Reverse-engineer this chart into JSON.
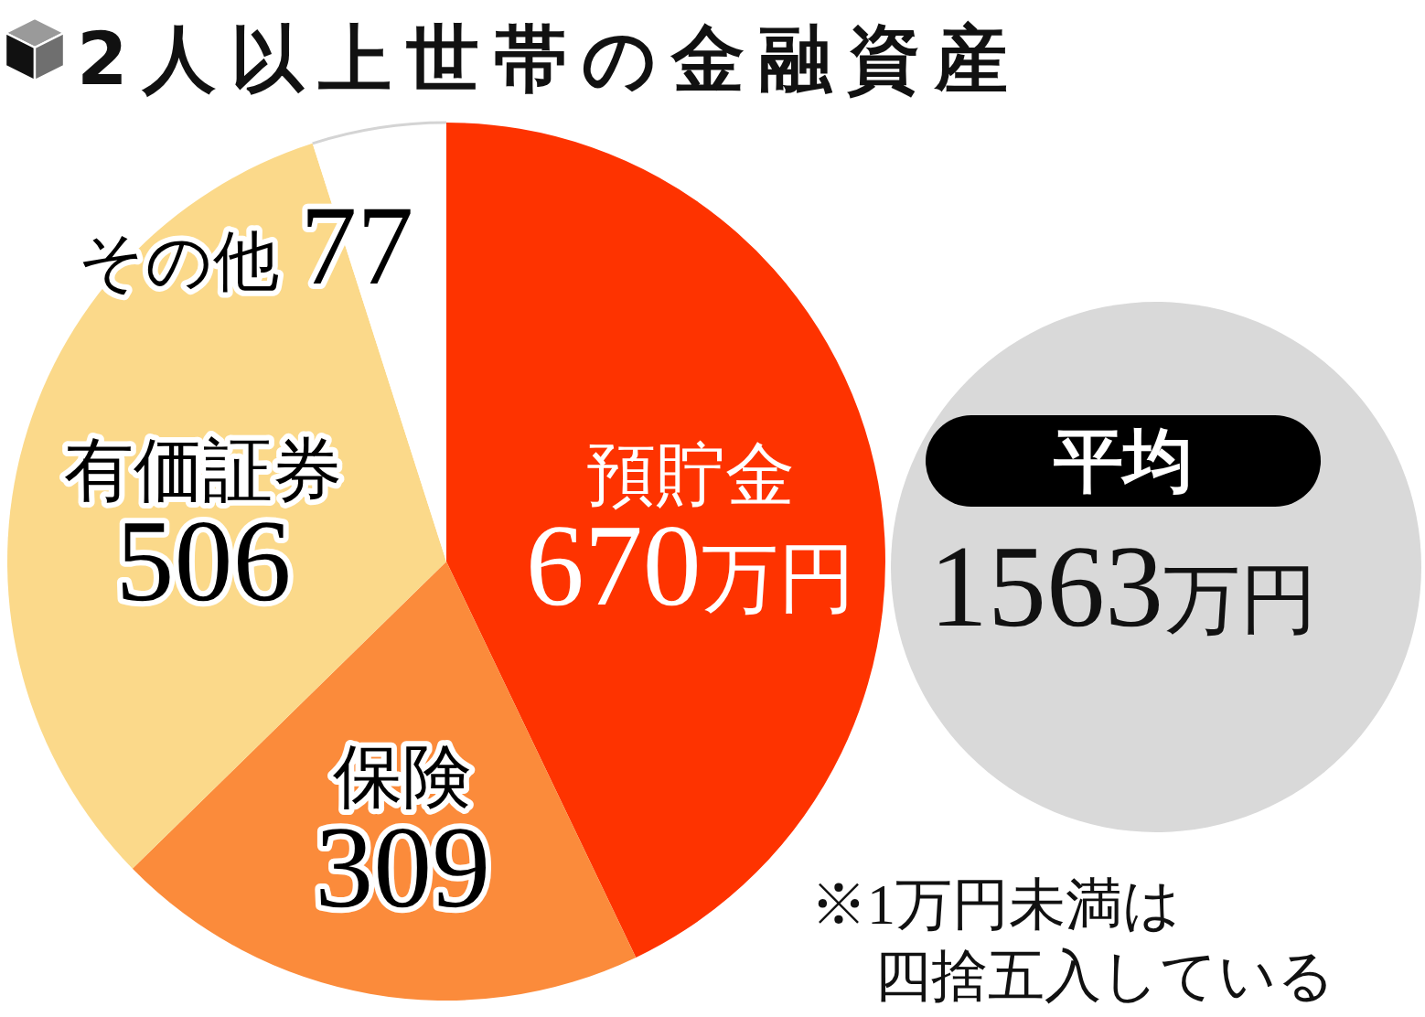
{
  "chart_data": [
    {
      "type": "pie",
      "title": "2人以上世帯の金融資産",
      "categories": [
        "預貯金",
        "保険",
        "有価証券",
        "その他"
      ],
      "values": [
        670,
        309,
        506,
        77
      ],
      "colors": [
        "#fe3300",
        "#fb8b3b",
        "#fbd98a",
        "#ffffff"
      ],
      "value_labels": [
        "670万円",
        "309",
        "506",
        "77"
      ],
      "annotations": [
        "※1万円未満は",
        "四捨五入している"
      ]
    },
    {
      "type": "other",
      "title": "平均",
      "annotations": [
        "1563万円"
      ]
    }
  ]
}
